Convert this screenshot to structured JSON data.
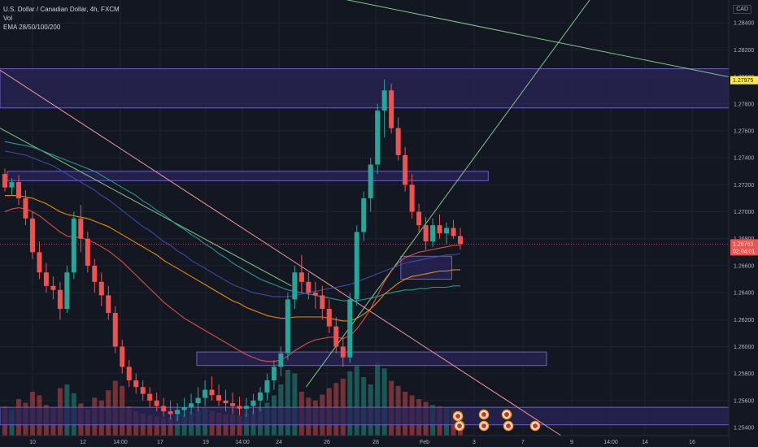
{
  "header": {
    "symbol_line": "U.S. Dollar / Canadian Dollar, 4h, FXCM",
    "vol_label": "Vol",
    "ema_label": "EMA 28/50/100/200",
    "currency_button": "CAD"
  },
  "price_tags": {
    "level_tag": "1.27975",
    "last_price": "1.26763",
    "countdown": "02:04:01"
  },
  "colors": {
    "background": "#131722",
    "bull": "#26a69a",
    "bear": "#ef5350",
    "zone_fill": "#2a2658",
    "zone_border": "#6c5fc7",
    "level_tag_bg": "#ffeb3b",
    "last_price_bg": "#ef5350"
  },
  "chart_data": {
    "type": "candlestick",
    "y_ticks": [
      1.284,
      1.282,
      1.28,
      1.278,
      1.276,
      1.274,
      1.272,
      1.27,
      1.268,
      1.266,
      1.264,
      1.262,
      1.26,
      1.258,
      1.256,
      1.254
    ],
    "y_tick_labels": [
      "1.28400",
      "1.28200",
      "1.28000",
      "1.27800",
      "1.27600",
      "1.27400",
      "1.27200",
      "1.27000",
      "1.26800",
      "1.26600",
      "1.26400",
      "1.26200",
      "1.26000",
      "1.25800",
      "1.25600",
      "1.25400"
    ],
    "ylim": [
      1.2534,
      1.2857
    ],
    "x_labels": [
      "10",
      "12",
      "14:00",
      "17",
      "19",
      "14:00",
      "24",
      "26",
      "28",
      "Feb",
      "3",
      "7",
      "9",
      "14:00",
      "14",
      "16"
    ],
    "grid": true,
    "candles": [
      [
        1.2728,
        1.2732,
        1.2715,
        1.2718
      ],
      [
        1.2718,
        1.2725,
        1.2712,
        1.2722
      ],
      [
        1.2722,
        1.2727,
        1.2705,
        1.271
      ],
      [
        1.271,
        1.2716,
        1.269,
        1.2695
      ],
      [
        1.2695,
        1.27,
        1.2665,
        1.267
      ],
      [
        1.267,
        1.2678,
        1.265,
        1.2655
      ],
      [
        1.2655,
        1.2662,
        1.264,
        1.2645
      ],
      [
        1.2645,
        1.2652,
        1.2635,
        1.2642
      ],
      [
        1.2642,
        1.2648,
        1.262,
        1.2628
      ],
      [
        1.2628,
        1.266,
        1.2625,
        1.2655
      ],
      [
        1.2655,
        1.27,
        1.265,
        1.2695
      ],
      [
        1.2695,
        1.2705,
        1.267,
        1.268
      ],
      [
        1.268,
        1.2685,
        1.2655,
        1.266
      ],
      [
        1.266,
        1.2665,
        1.264,
        1.2648
      ],
      [
        1.2648,
        1.2655,
        1.263,
        1.2638
      ],
      [
        1.2638,
        1.2645,
        1.262,
        1.2625
      ],
      [
        1.2625,
        1.263,
        1.2595,
        1.26
      ],
      [
        1.26,
        1.2605,
        1.258,
        1.2585
      ],
      [
        1.2585,
        1.259,
        1.257,
        1.2575
      ],
      [
        1.2575,
        1.258,
        1.2565,
        1.257
      ],
      [
        1.257,
        1.2575,
        1.256,
        1.2565
      ],
      [
        1.2565,
        1.257,
        1.2555,
        1.256
      ],
      [
        1.256,
        1.2566,
        1.2552,
        1.2556
      ],
      [
        1.2556,
        1.2562,
        1.2548,
        1.2552
      ],
      [
        1.2552,
        1.256,
        1.2546,
        1.255
      ],
      [
        1.255,
        1.2558,
        1.2545,
        1.2553
      ],
      [
        1.2553,
        1.2562,
        1.2548,
        1.2555
      ],
      [
        1.2555,
        1.2565,
        1.255,
        1.2558
      ],
      [
        1.2558,
        1.257,
        1.2552,
        1.2562
      ],
      [
        1.2562,
        1.2575,
        1.2556,
        1.2568
      ],
      [
        1.2568,
        1.2578,
        1.256,
        1.2564
      ],
      [
        1.2564,
        1.2572,
        1.2556,
        1.256
      ],
      [
        1.256,
        1.2568,
        1.2552,
        1.2558
      ],
      [
        1.2558,
        1.2566,
        1.255,
        1.2556
      ],
      [
        1.2556,
        1.2563,
        1.2549,
        1.2554
      ],
      [
        1.2554,
        1.2562,
        1.2548,
        1.2556
      ],
      [
        1.2556,
        1.2565,
        1.255,
        1.256
      ],
      [
        1.256,
        1.257,
        1.2552,
        1.2566
      ],
      [
        1.2566,
        1.258,
        1.256,
        1.2575
      ],
      [
        1.2575,
        1.259,
        1.2568,
        1.2585
      ],
      [
        1.2585,
        1.26,
        1.2578,
        1.2595
      ],
      [
        1.2595,
        1.264,
        1.259,
        1.2635
      ],
      [
        1.2635,
        1.266,
        1.2628,
        1.2655
      ],
      [
        1.2655,
        1.2668,
        1.264,
        1.2648
      ],
      [
        1.2648,
        1.2655,
        1.2635,
        1.264
      ],
      [
        1.264,
        1.2648,
        1.2628,
        1.2638
      ],
      [
        1.2638,
        1.2645,
        1.262,
        1.2628
      ],
      [
        1.2628,
        1.2635,
        1.261,
        1.2615
      ],
      [
        1.2615,
        1.2622,
        1.2595,
        1.26
      ],
      [
        1.26,
        1.2608,
        1.2585,
        1.2592
      ],
      [
        1.2592,
        1.264,
        1.2588,
        1.2635
      ],
      [
        1.2635,
        1.269,
        1.263,
        1.2685
      ],
      [
        1.2685,
        1.2715,
        1.2678,
        1.271
      ],
      [
        1.271,
        1.274,
        1.27,
        1.2735
      ],
      [
        1.2735,
        1.278,
        1.2728,
        1.2775
      ],
      [
        1.2775,
        1.2798,
        1.2755,
        1.279
      ],
      [
        1.279,
        1.2795,
        1.2758,
        1.2762
      ],
      [
        1.2762,
        1.277,
        1.2738,
        1.2742
      ],
      [
        1.2742,
        1.2748,
        1.2715,
        1.272
      ],
      [
        1.272,
        1.2728,
        1.2695,
        1.27
      ],
      [
        1.27,
        1.2706,
        1.2685,
        1.269
      ],
      [
        1.269,
        1.2696,
        1.2672,
        1.2678
      ],
      [
        1.2678,
        1.2695,
        1.2674,
        1.269
      ],
      [
        1.269,
        1.2698,
        1.268,
        1.2684
      ],
      [
        1.2684,
        1.2692,
        1.2676,
        1.2688
      ],
      [
        1.2688,
        1.2694,
        1.268,
        1.2682
      ],
      [
        1.2682,
        1.2688,
        1.2672,
        1.2676
      ]
    ],
    "volumes": [
      40,
      35,
      50,
      45,
      60,
      55,
      42,
      38,
      65,
      70,
      58,
      44,
      36,
      52,
      48,
      62,
      75,
      68,
      40,
      33,
      30,
      28,
      26,
      24,
      25,
      27,
      30,
      32,
      35,
      38,
      34,
      31,
      29,
      28,
      27,
      30,
      33,
      38,
      45,
      55,
      70,
      90,
      85,
      60,
      52,
      48,
      56,
      65,
      72,
      78,
      88,
      95,
      80,
      70,
      100,
      92,
      75,
      68,
      60,
      55,
      50,
      46,
      42,
      40,
      38,
      36,
      34
    ],
    "ema": [
      {
        "name": "EMA 28",
        "color": "#ef5350",
        "values": [
          1.27,
          1.2702,
          1.2703,
          1.2702,
          1.27,
          1.2697,
          1.2693,
          1.2689,
          1.2685,
          1.2682,
          1.2681,
          1.2681,
          1.2679,
          1.2677,
          1.2674,
          1.2671,
          1.2667,
          1.2663,
          1.2658,
          1.2653,
          1.2648,
          1.2643,
          1.2638,
          1.2633,
          1.2629,
          1.2625,
          1.2621,
          1.2618,
          1.2615,
          1.2612,
          1.2609,
          1.2606,
          1.2603,
          1.26,
          1.2597,
          1.2594,
          1.2592,
          1.259,
          1.2589,
          1.2589,
          1.259,
          1.2593,
          1.2597,
          1.26,
          1.2603,
          1.2605,
          1.2606,
          1.2607,
          1.2607,
          1.2606,
          1.2608,
          1.2613,
          1.262,
          1.2628,
          1.2638,
          1.2648,
          1.2656,
          1.2662,
          1.2666,
          1.2668,
          1.267,
          1.2671,
          1.2672,
          1.2673,
          1.2674,
          1.2675,
          1.2675
        ]
      },
      {
        "name": "EMA 50",
        "color": "#ff9800",
        "values": [
          1.2712,
          1.2712,
          1.2712,
          1.2711,
          1.271,
          1.2708,
          1.2706,
          1.2703,
          1.27,
          1.2698,
          1.2697,
          1.2696,
          1.2695,
          1.2693,
          1.2691,
          1.2689,
          1.2686,
          1.2683,
          1.268,
          1.2677,
          1.2674,
          1.2671,
          1.2668,
          1.2664,
          1.2661,
          1.2658,
          1.2655,
          1.2652,
          1.2649,
          1.2646,
          1.2643,
          1.264,
          1.2637,
          1.2634,
          1.2632,
          1.2629,
          1.2627,
          1.2625,
          1.2623,
          1.2622,
          1.2621,
          1.2621,
          1.2622,
          1.2622,
          1.2622,
          1.2622,
          1.2622,
          1.2621,
          1.262,
          1.2619,
          1.2619,
          1.2621,
          1.2624,
          1.2628,
          1.2633,
          1.2639,
          1.2643,
          1.2647,
          1.265,
          1.2652,
          1.2653,
          1.2654,
          1.2655,
          1.2656,
          1.2656,
          1.2657,
          1.2657
        ]
      },
      {
        "name": "EMA 100",
        "color": "#26a69a",
        "values": [
          1.2752,
          1.2751,
          1.275,
          1.2749,
          1.2748,
          1.2746,
          1.2744,
          1.2742,
          1.274,
          1.2738,
          1.2736,
          1.2734,
          1.2732,
          1.273,
          1.2727,
          1.2724,
          1.2721,
          1.2718,
          1.2715,
          1.2712,
          1.2708,
          1.2705,
          1.2701,
          1.2698,
          1.2694,
          1.269,
          1.2687,
          1.2683,
          1.268,
          1.2676,
          1.2673,
          1.2669,
          1.2666,
          1.2662,
          1.2659,
          1.2656,
          1.2653,
          1.265,
          1.2648,
          1.2646,
          1.2644,
          1.2642,
          1.2641,
          1.264,
          1.2639,
          1.2638,
          1.2637,
          1.2636,
          1.2635,
          1.2634,
          1.2634,
          1.2634,
          1.2635,
          1.2636,
          1.2637,
          1.2639,
          1.264,
          1.2641,
          1.2642,
          1.2642,
          1.2643,
          1.2643,
          1.2644,
          1.2644,
          1.2644,
          1.2645,
          1.2645
        ]
      },
      {
        "name": "EMA 200",
        "color": "#3f51b5",
        "values": [
          1.2745,
          1.2744,
          1.2743,
          1.2742,
          1.274,
          1.2738,
          1.2736,
          1.2734,
          1.2731,
          1.2728,
          1.2725,
          1.2722,
          1.2719,
          1.2716,
          1.2712,
          1.2709,
          1.2705,
          1.2701,
          1.2697,
          1.2693,
          1.2689,
          1.2686,
          1.2682,
          1.2678,
          1.2675,
          1.2671,
          1.2668,
          1.2664,
          1.2661,
          1.2658,
          1.2655,
          1.2652,
          1.2649,
          1.2646,
          1.2644,
          1.2642,
          1.264,
          1.2639,
          1.2638,
          1.2637,
          1.2637,
          1.2637,
          1.2638,
          1.2639,
          1.264,
          1.2641,
          1.2642,
          1.2643,
          1.2644,
          1.2645,
          1.2646,
          1.2648,
          1.265,
          1.2652,
          1.2654,
          1.2656,
          1.2658,
          1.266,
          1.2662,
          1.2663,
          1.2664,
          1.2665,
          1.2666,
          1.2667,
          1.2668,
          1.2668,
          1.2669
        ]
      }
    ],
    "zones": [
      {
        "from": 1.2777,
        "to": 1.2806,
        "x_start": 0.0,
        "x_end": 1.0
      },
      {
        "from": 1.2723,
        "to": 1.273,
        "x_start": 0.01,
        "x_end": 0.67
      },
      {
        "from": 1.265,
        "to": 1.2667,
        "x_start": 0.55,
        "x_end": 0.62
      },
      {
        "from": 1.2586,
        "to": 1.2596,
        "x_start": 0.27,
        "x_end": 0.75
      },
      {
        "from": 1.2542,
        "to": 1.2555,
        "x_start": 0.0,
        "x_end": 1.0
      }
    ],
    "lines": [
      {
        "color": "#ef9a9a",
        "points": [
          [
            0,
            1.2805
          ],
          [
            0.77,
            1.2534
          ]
        ]
      },
      {
        "color": "#81c784",
        "points": [
          [
            0.45,
            1.286
          ],
          [
            1.0,
            1.28
          ]
        ]
      },
      {
        "color": "#81c784",
        "points": [
          [
            0.0,
            1.2762
          ],
          [
            0.4,
            1.2645
          ]
        ]
      },
      {
        "color": "#81c784",
        "points": [
          [
            0.42,
            1.257
          ],
          [
            0.82,
            1.2865
          ]
        ]
      }
    ]
  }
}
